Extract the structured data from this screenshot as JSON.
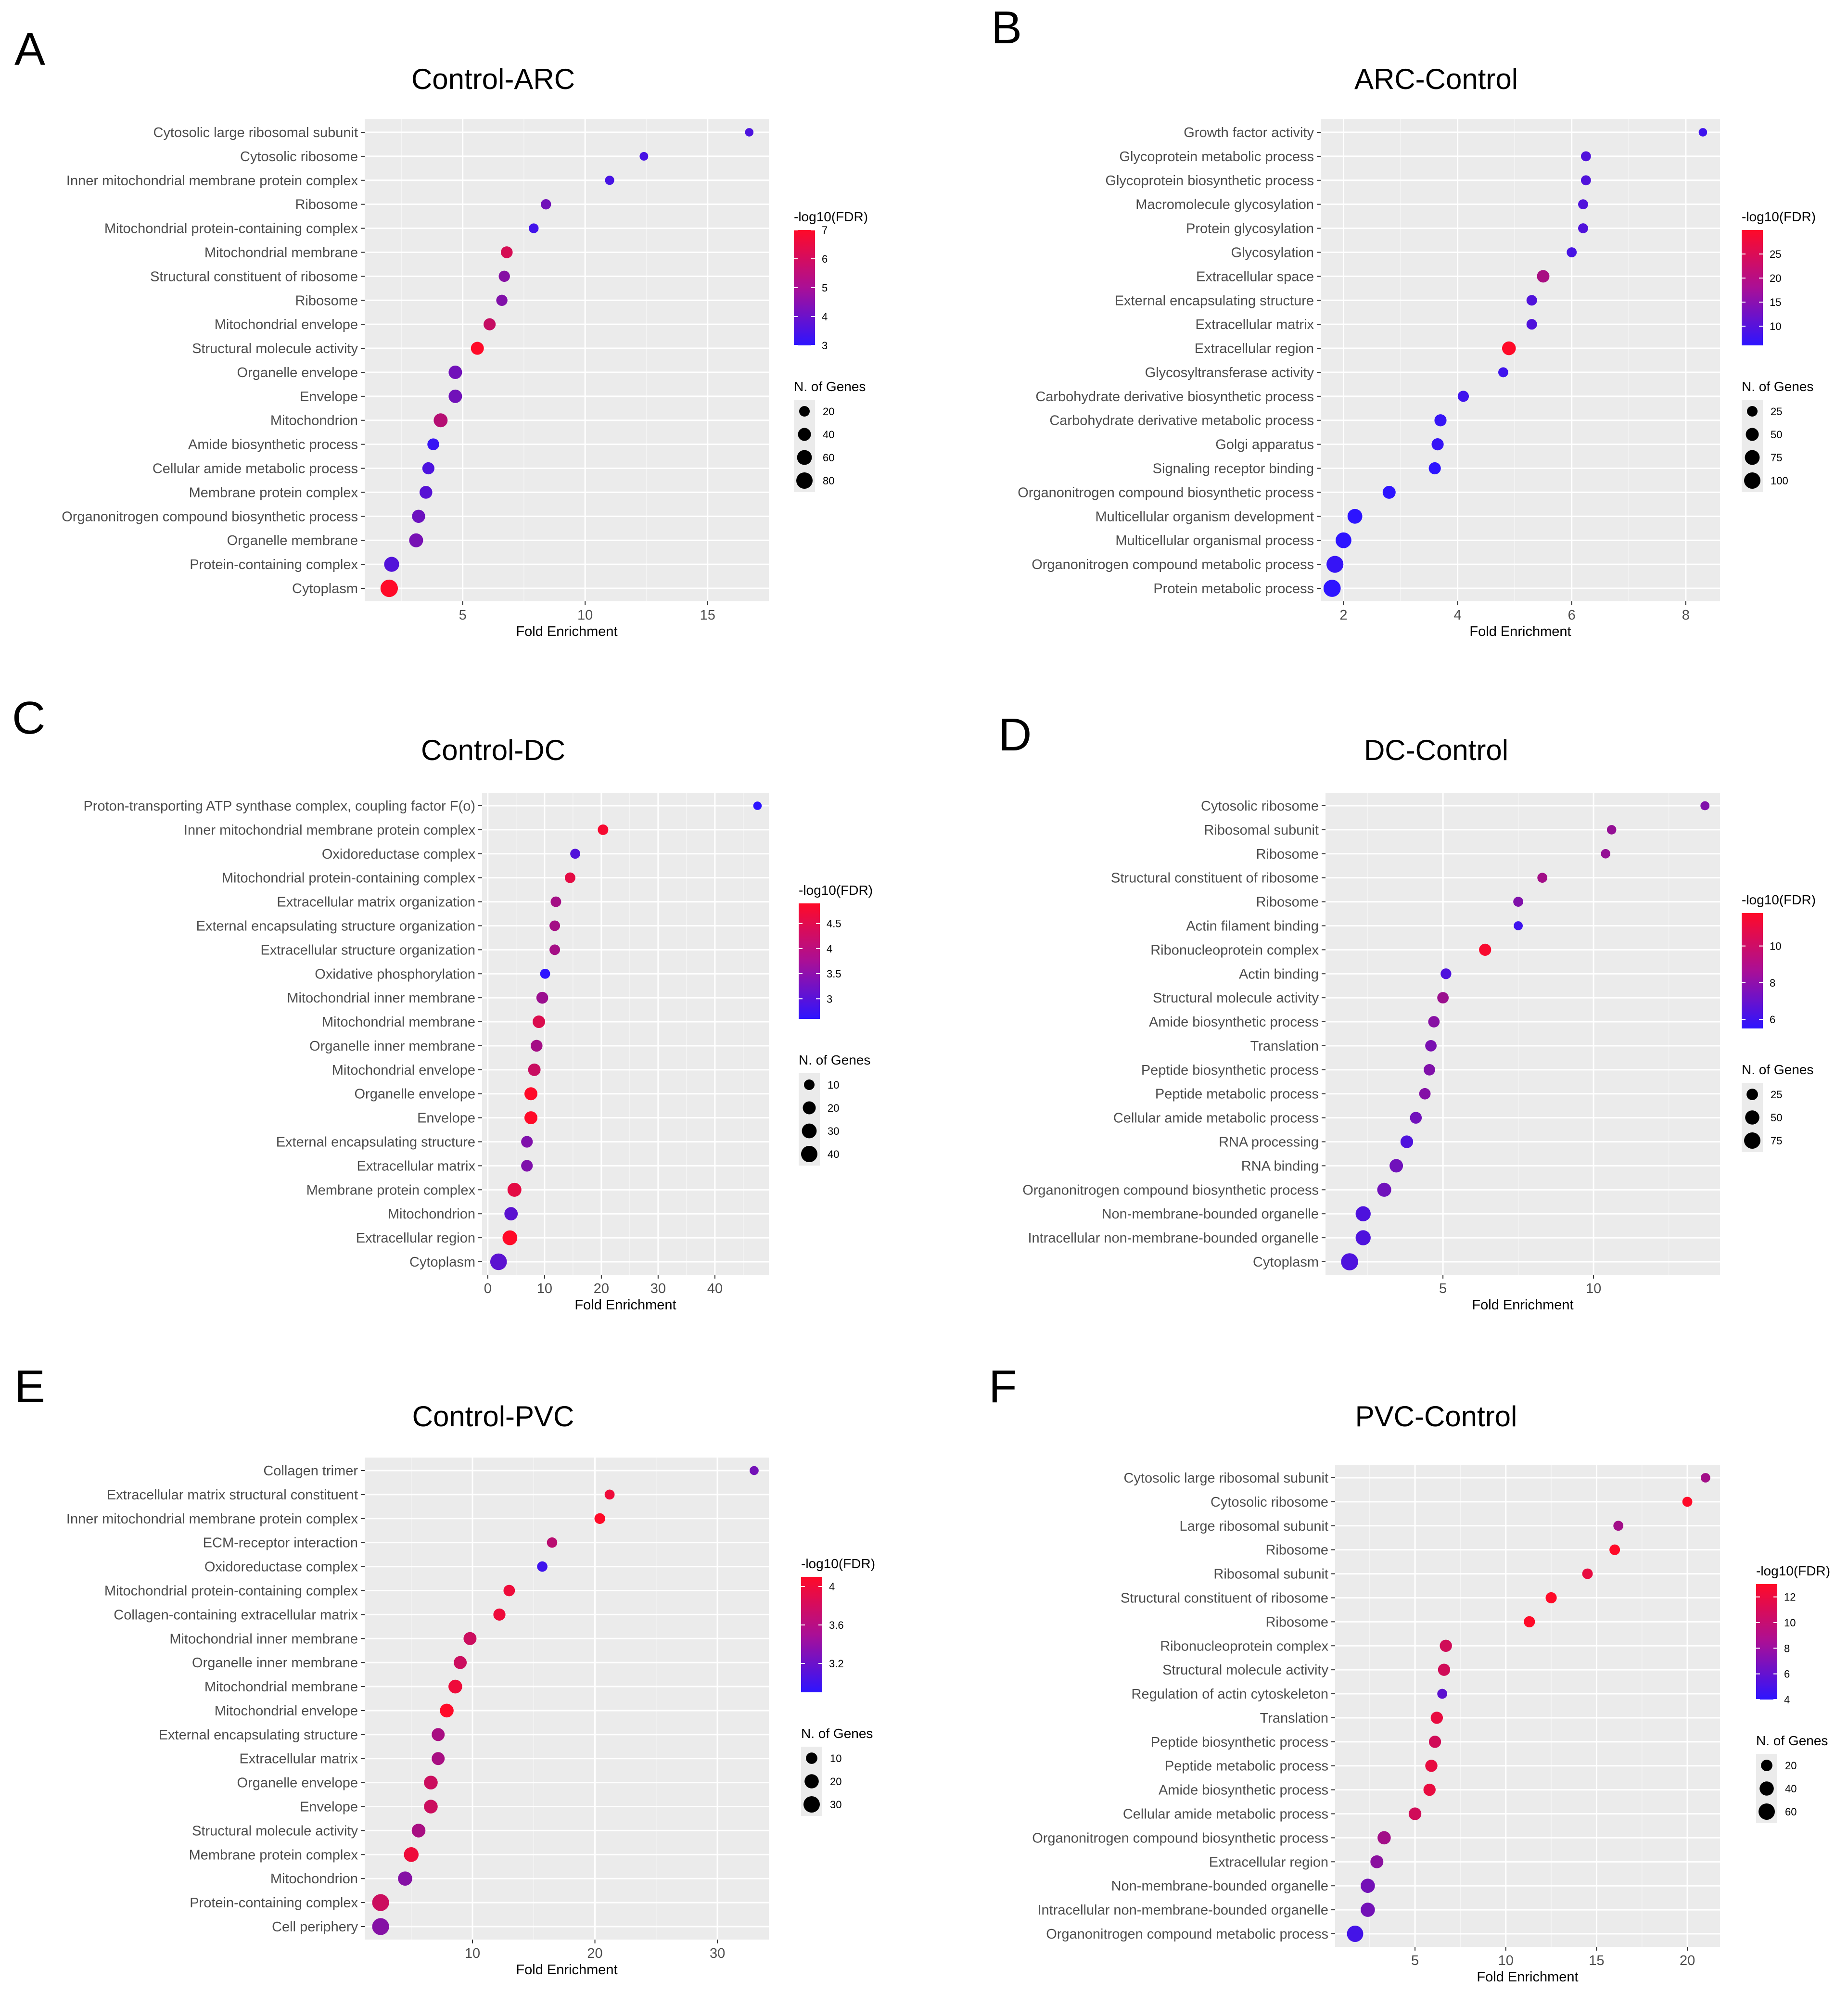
{
  "figure": "Gene Ontology enrichment dot plots",
  "chart_data": [
    {
      "panel": "A",
      "type": "scatter",
      "title": "Control-ARC",
      "xlabel": "Fold Enrichment",
      "ylabel": "",
      "xlim": [
        1,
        17.5
      ],
      "xticks": [
        5,
        10,
        15
      ],
      "categories": [
        "Cytosolic large ribosomal subunit",
        "Cytosolic ribosome",
        "Inner mitochondrial membrane protein complex",
        "Ribosome",
        "Mitochondrial protein-containing complex",
        "Mitochondrial membrane",
        "Structural constituent of ribosome",
        "Ribosome",
        "Mitochondrial envelope",
        "Structural molecule activity",
        "Organelle envelope",
        "Envelope",
        "Mitochondrion",
        "Amide biosynthetic process",
        "Cellular amide metabolic process",
        "Membrane protein complex",
        "Organonitrogen compound biosynthetic process",
        "Organelle membrane",
        "Protein-containing complex",
        "Cytoplasm"
      ],
      "fold_enrichment": [
        16.7,
        12.4,
        11.0,
        8.4,
        7.9,
        6.8,
        6.7,
        6.6,
        6.1,
        5.6,
        4.7,
        4.7,
        4.1,
        3.8,
        3.6,
        3.5,
        3.2,
        3.1,
        2.1,
        2.0
      ],
      "neg_log10_fdr": [
        3.6,
        3.5,
        3.5,
        4.3,
        3.4,
        6.2,
        4.7,
        4.6,
        5.9,
        7.0,
        4.3,
        4.3,
        5.6,
        3.2,
        3.6,
        3.8,
        4.2,
        4.4,
        3.7,
        7.0
      ],
      "n_genes": [
        8,
        9,
        12,
        18,
        15,
        30,
        25,
        25,
        32,
        40,
        45,
        45,
        50,
        30,
        32,
        38,
        42,
        50,
        62,
        95
      ],
      "color_legend": {
        "title": "-log10(FDR)",
        "ticks": [
          7,
          6,
          5,
          4,
          3
        ],
        "range": [
          3,
          7
        ]
      },
      "size_legend": {
        "title": "N. of Genes",
        "values": [
          20,
          40,
          60,
          80
        ]
      }
    },
    {
      "panel": "B",
      "type": "scatter",
      "title": "ARC-Control",
      "xlabel": "Fold Enrichment",
      "ylabel": "",
      "xlim": [
        1.6,
        8.6
      ],
      "xticks": [
        2,
        4,
        6,
        8
      ],
      "categories": [
        "Growth factor activity",
        "Glycoprotein metabolic process",
        "Glycoprotein biosynthetic process",
        "Macromolecule glycosylation",
        "Protein glycosylation",
        "Glycosylation",
        "Extracellular space",
        "External encapsulating structure",
        "Extracellular matrix",
        "Extracellular region",
        "Glycosyltransferase activity",
        "Carbohydrate derivative biosynthetic process",
        "Carbohydrate derivative metabolic process",
        "Golgi apparatus",
        "Signaling receptor binding",
        "Organonitrogen compound biosynthetic process",
        "Multicellular organism development",
        "Multicellular organismal process",
        "Organonitrogen compound metabolic process",
        "Protein metabolic process"
      ],
      "fold_enrichment": [
        8.3,
        6.25,
        6.25,
        6.2,
        6.2,
        6.0,
        5.5,
        5.3,
        5.3,
        4.9,
        4.8,
        4.1,
        3.7,
        3.65,
        3.6,
        2.8,
        2.2,
        2.0,
        1.85,
        1.8
      ],
      "neg_log10_fdr": [
        8,
        10,
        10,
        10,
        10,
        9,
        20,
        10,
        10,
        30,
        8,
        8,
        7,
        7,
        6,
        6,
        6,
        6,
        7,
        6
      ],
      "n_genes": [
        10,
        20,
        20,
        20,
        20,
        20,
        45,
        25,
        25,
        60,
        20,
        30,
        40,
        40,
        40,
        50,
        75,
        90,
        110,
        115
      ],
      "color_legend": {
        "title": "-log10(FDR)",
        "ticks": [
          25,
          20,
          15,
          10
        ],
        "range": [
          6,
          30
        ]
      },
      "size_legend": {
        "title": "N. of Genes",
        "values": [
          25,
          50,
          75,
          100
        ]
      }
    },
    {
      "panel": "C",
      "type": "scatter",
      "title": "Control-DC",
      "xlabel": "Fold Enrichment",
      "ylabel": "",
      "xlim": [
        -1,
        49.5
      ],
      "xticks": [
        0,
        10,
        20,
        30,
        40
      ],
      "categories": [
        "Proton-transporting ATP synthase complex, coupling factor F(o)",
        "Inner mitochondrial membrane protein complex",
        "Oxidoreductase complex",
        "Mitochondrial protein-containing complex",
        "Extracellular matrix organization",
        "External encapsulating structure organization",
        "Extracellular structure organization",
        "Oxidative phosphorylation",
        "Mitochondrial inner membrane",
        "Mitochondrial membrane",
        "Organelle inner membrane",
        "Mitochondrial envelope",
        "Organelle envelope",
        "Envelope",
        "External encapsulating structure",
        "Extracellular matrix",
        "Membrane protein complex",
        "Mitochondrion",
        "Extracellular region",
        "Cytoplasm"
      ],
      "fold_enrichment": [
        47.5,
        20.3,
        15.4,
        14.5,
        12.0,
        11.8,
        11.8,
        10.1,
        9.6,
        9.0,
        8.6,
        8.2,
        7.6,
        7.6,
        6.9,
        6.9,
        4.7,
        4.1,
        3.9,
        1.9
      ],
      "neg_log10_fdr": [
        2.6,
        4.8,
        3.0,
        4.6,
        3.9,
        3.9,
        3.9,
        2.6,
        3.8,
        4.5,
        3.9,
        4.3,
        4.9,
        4.9,
        3.5,
        3.5,
        4.6,
        3.1,
        4.9,
        3.1
      ],
      "n_genes": [
        4,
        10,
        8,
        10,
        10,
        10,
        10,
        8,
        15,
        18,
        15,
        18,
        20,
        20,
        14,
        14,
        25,
        22,
        30,
        42
      ],
      "color_legend": {
        "title": "-log10(FDR)",
        "ticks": [
          4.5,
          4.0,
          3.5,
          3.0
        ],
        "range": [
          2.6,
          4.9
        ]
      },
      "size_legend": {
        "title": "N. of Genes",
        "values": [
          10,
          20,
          30,
          40
        ]
      }
    },
    {
      "panel": "D",
      "type": "scatter",
      "title": "DC-Control",
      "xlabel": "Fold Enrichment",
      "ylabel": "",
      "xlim": [
        1.1,
        14.2
      ],
      "xticks": [
        5,
        10
      ],
      "categories": [
        "Cytosolic ribosome",
        "Ribosomal subunit",
        "Ribosome",
        "Structural constituent of ribosome",
        "Ribosome",
        "Actin filament binding",
        "Ribonucleoprotein complex",
        "Actin binding",
        "Structural molecule activity",
        "Amide biosynthetic process",
        "Translation",
        "Peptide biosynthetic process",
        "Peptide metabolic process",
        "Cellular amide metabolic process",
        "RNA processing",
        "RNA binding",
        "Organonitrogen compound biosynthetic process",
        "Non-membrane-bounded organelle",
        "Intracellular non-membrane-bounded organelle",
        "Cytoplasm"
      ],
      "fold_enrichment": [
        13.7,
        10.6,
        10.4,
        8.3,
        7.5,
        7.5,
        6.4,
        5.1,
        5.0,
        4.7,
        4.6,
        4.55,
        4.4,
        4.1,
        3.8,
        3.45,
        3.05,
        2.35,
        2.35,
        1.9
      ],
      "neg_log10_fdr": [
        8.0,
        8.6,
        8.6,
        9.0,
        8.0,
        6.0,
        11.6,
        6.5,
        8.8,
        8.2,
        7.8,
        8.0,
        8.1,
        7.5,
        6.5,
        7.5,
        7.5,
        6.5,
        6.5,
        6.5
      ],
      "n_genes": [
        10,
        12,
        12,
        15,
        15,
        10,
        30,
        20,
        25,
        25,
        25,
        25,
        25,
        28,
        35,
        42,
        48,
        60,
        60,
        85
      ],
      "color_legend": {
        "title": "-log10(FDR)",
        "ticks": [
          10,
          8,
          6
        ],
        "range": [
          5.5,
          11.8
        ]
      },
      "size_legend": {
        "title": "N. of Genes",
        "values": [
          25,
          50,
          75
        ]
      }
    },
    {
      "panel": "E",
      "type": "scatter",
      "title": "Control-PVC",
      "xlabel": "Fold Enrichment",
      "ylabel": "",
      "xlim": [
        1.2,
        34.2
      ],
      "xticks": [
        10,
        20,
        30
      ],
      "categories": [
        "Collagen trimer",
        "Extracellular matrix structural constituent",
        "Inner mitochondrial membrane protein complex",
        "ECM-receptor interaction",
        "Oxidoreductase complex",
        "Mitochondrial protein-containing complex",
        "Collagen-containing extracellular matrix",
        "Mitochondrial inner membrane",
        "Organelle inner membrane",
        "Mitochondrial membrane",
        "Mitochondrial envelope",
        "External encapsulating structure",
        "Extracellular matrix",
        "Organelle envelope",
        "Envelope",
        "Structural molecule activity",
        "Membrane protein complex",
        "Mitochondrion",
        "Protein-containing complex",
        "Cell periphery"
      ],
      "fold_enrichment": [
        33.0,
        21.2,
        20.4,
        16.5,
        15.7,
        13.0,
        12.2,
        9.8,
        9.0,
        8.6,
        7.9,
        7.2,
        7.2,
        6.6,
        6.6,
        5.6,
        5.0,
        4.5,
        2.5,
        2.5
      ],
      "neg_log10_fdr": [
        3.3,
        4.0,
        4.1,
        3.7,
        3.0,
        4.0,
        4.0,
        3.8,
        3.8,
        4.0,
        4.1,
        3.6,
        3.6,
        3.8,
        3.8,
        3.6,
        4.0,
        3.4,
        3.8,
        3.4
      ],
      "n_genes": [
        4,
        6,
        8,
        7,
        7,
        10,
        12,
        15,
        15,
        18,
        18,
        15,
        15,
        18,
        18,
        18,
        22,
        20,
        33,
        33
      ],
      "color_legend": {
        "title": "-log10(FDR)",
        "ticks": [
          4.0,
          3.6,
          3.2
        ],
        "range": [
          2.9,
          4.1
        ]
      },
      "size_legend": {
        "title": "N. of Genes",
        "values": [
          10,
          20,
          30
        ]
      }
    },
    {
      "panel": "F",
      "type": "scatter",
      "title": "PVC-Control",
      "xlabel": "Fold Enrichment",
      "ylabel": "",
      "xlim": [
        0.6,
        21.8
      ],
      "xticks": [
        5,
        10,
        15,
        20
      ],
      "categories": [
        "Cytosolic large ribosomal subunit",
        "Cytosolic ribosome",
        "Large ribosomal subunit",
        "Ribosome",
        "Ribosomal subunit",
        "Structural constituent of ribosome",
        "Ribosome",
        "Ribonucleoprotein complex",
        "Structural molecule activity",
        "Regulation of actin cytoskeleton",
        "Translation",
        "Peptide biosynthetic process",
        "Peptide metabolic process",
        "Amide biosynthetic process",
        "Cellular amide metabolic process",
        "Organonitrogen compound biosynthetic process",
        "Extracellular region",
        "Non-membrane-bounded organelle",
        "Intracellular non-membrane-bounded organelle",
        "Organonitrogen compound metabolic process"
      ],
      "fold_enrichment": [
        21.0,
        20.0,
        16.2,
        16.0,
        14.5,
        12.5,
        11.3,
        6.7,
        6.6,
        6.5,
        6.2,
        6.1,
        5.9,
        5.8,
        5.0,
        3.3,
        2.9,
        2.4,
        2.4,
        1.7
      ],
      "neg_log10_fdr": [
        9,
        13,
        9,
        13,
        12,
        13,
        13,
        11,
        11,
        6,
        12,
        11,
        12,
        12,
        11,
        9,
        8,
        7,
        7,
        5
      ],
      "n_genes": [
        10,
        12,
        12,
        15,
        15,
        18,
        18,
        25,
        25,
        12,
        25,
        25,
        25,
        25,
        28,
        32,
        30,
        40,
        40,
        60
      ],
      "color_legend": {
        "title": "-log10(FDR)",
        "ticks": [
          12,
          10,
          8,
          6,
          4
        ],
        "range": [
          4,
          13
        ]
      },
      "size_legend": {
        "title": "N. of Genes",
        "values": [
          20,
          40,
          60
        ]
      }
    }
  ]
}
